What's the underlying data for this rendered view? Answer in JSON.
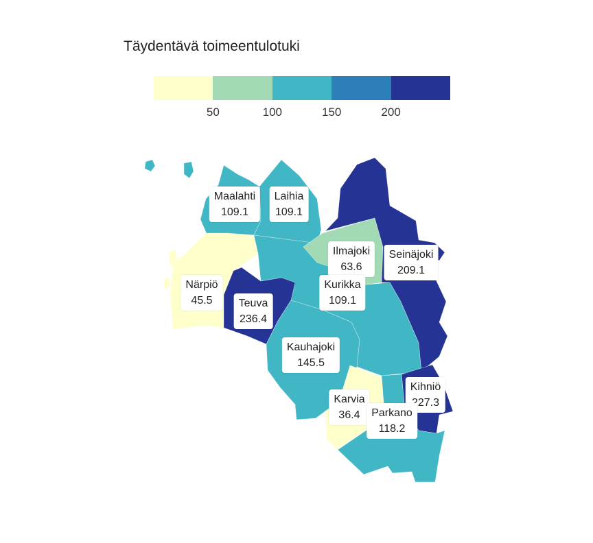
{
  "title": "Täydentävä toimeentulotuki",
  "legend": {
    "colors": [
      "#ffffcc",
      "#a1dab4",
      "#41b6c4",
      "#2c7fb8",
      "#253494"
    ],
    "ticks": [
      "50",
      "100",
      "150",
      "200"
    ]
  },
  "regions": {
    "maalahti": {
      "name": "Maalahti",
      "value": "109.1",
      "color": "#41b6c4"
    },
    "laihia": {
      "name": "Laihia",
      "value": "109.1",
      "color": "#41b6c4"
    },
    "ilmajoki": {
      "name": "Ilmajoki",
      "value": "63.6",
      "color": "#a1dab4"
    },
    "seinajoki": {
      "name": "Seinäjoki",
      "value": "209.1",
      "color": "#253494"
    },
    "narpio": {
      "name": "Närpiö",
      "value": "45.5",
      "color": "#ffffcc"
    },
    "kurikka": {
      "name": "Kurikka",
      "value": "109.1",
      "color": "#41b6c4"
    },
    "teuva": {
      "name": "Teuva",
      "value": "236.4",
      "color": "#253494"
    },
    "kauhajoki": {
      "name": "Kauhajoki",
      "value": "145.5",
      "color": "#41b6c4"
    },
    "kihnio": {
      "name": "Kihniö",
      "value": "227.3",
      "color": "#253494"
    },
    "karvia": {
      "name": "Karvia",
      "value": "36.4",
      "color": "#ffffcc"
    },
    "parkano": {
      "name": "Parkano",
      "value": "118.2",
      "color": "#41b6c4"
    }
  }
}
